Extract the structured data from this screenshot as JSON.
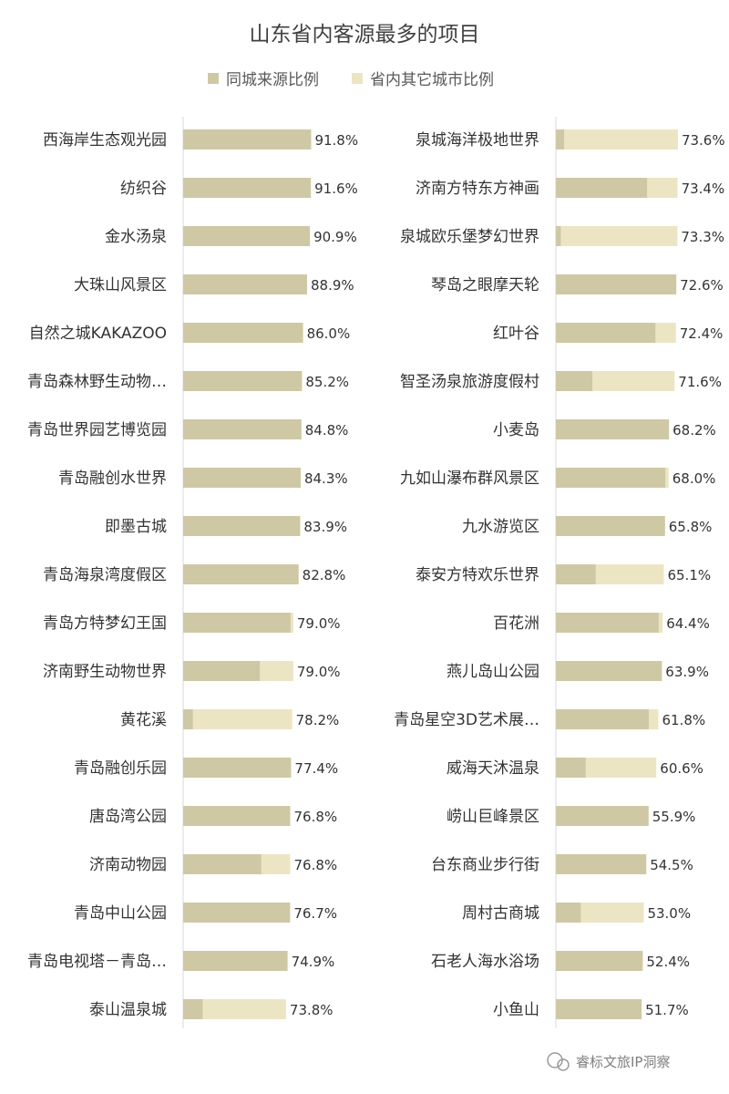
{
  "chart_data": {
    "type": "bar",
    "title": "山东省内客源最多的项目",
    "legend": [
      "同城来源比例",
      "省内其它城市比例"
    ],
    "legend_position": "top",
    "colors": {
      "same_city": "#cfc8a5",
      "other_city": "#ece5c4"
    },
    "value_axis": [
      0,
      100
    ],
    "grid": false,
    "panels": [
      {
        "panel": "left",
        "items": [
          {
            "name": "西海岸生态观光园",
            "total": 91.8,
            "total_label": "91.8%",
            "same_city": 91.8
          },
          {
            "name": "纺织谷",
            "total": 91.6,
            "total_label": "91.6%",
            "same_city": 91.6
          },
          {
            "name": "金水汤泉",
            "total": 90.9,
            "total_label": "90.9%",
            "same_city": 90.9
          },
          {
            "name": "大珠山风景区",
            "total": 88.9,
            "total_label": "88.9%",
            "same_city": 88.9
          },
          {
            "name": "自然之城KAKAZOO",
            "total": 86.0,
            "total_label": "86.0%",
            "same_city": 86.0
          },
          {
            "name": "青岛森林野生动物…",
            "total": 85.2,
            "total_label": "85.2%",
            "same_city": 85.2
          },
          {
            "name": "青岛世界园艺博览园",
            "total": 84.8,
            "total_label": "84.8%",
            "same_city": 84.8
          },
          {
            "name": "青岛融创水世界",
            "total": 84.3,
            "total_label": "84.3%",
            "same_city": 84.3
          },
          {
            "name": "即墨古城",
            "total": 83.9,
            "total_label": "83.9%",
            "same_city": 83.9
          },
          {
            "name": "青岛海泉湾度假区",
            "total": 82.8,
            "total_label": "82.8%",
            "same_city": 82.8
          },
          {
            "name": "青岛方特梦幻王国",
            "total": 79.0,
            "total_label": "79.0%",
            "same_city": 77
          },
          {
            "name": "济南野生动物世界",
            "total": 79.0,
            "total_label": "79.0%",
            "same_city": 55
          },
          {
            "name": "黄花溪",
            "total": 78.2,
            "total_label": "78.2%",
            "same_city": 7
          },
          {
            "name": "青岛融创乐园",
            "total": 77.4,
            "total_label": "77.4%",
            "same_city": 77.4
          },
          {
            "name": "唐岛湾公园",
            "total": 76.8,
            "total_label": "76.8%",
            "same_city": 76.8
          },
          {
            "name": "济南动物园",
            "total": 76.8,
            "total_label": "76.8%",
            "same_city": 56
          },
          {
            "name": "青岛中山公园",
            "total": 76.7,
            "total_label": "76.7%",
            "same_city": 76.7
          },
          {
            "name": "青岛电视塔－青岛…",
            "total": 74.9,
            "total_label": "74.9%",
            "same_city": 74.9
          },
          {
            "name": "泰山温泉城",
            "total": 73.8,
            "total_label": "73.8%",
            "same_city": 14
          }
        ]
      },
      {
        "panel": "right",
        "items": [
          {
            "name": "泉城海洋极地世界",
            "total": 73.6,
            "total_label": "73.6%",
            "same_city": 5
          },
          {
            "name": "济南方特东方神画",
            "total": 73.4,
            "total_label": "73.4%",
            "same_city": 55
          },
          {
            "name": "泉城欧乐堡梦幻世界",
            "total": 73.3,
            "total_label": "73.3%",
            "same_city": 3
          },
          {
            "name": "琴岛之眼摩天轮",
            "total": 72.6,
            "total_label": "72.6%",
            "same_city": 72.6
          },
          {
            "name": "红叶谷",
            "total": 72.4,
            "total_label": "72.4%",
            "same_city": 60
          },
          {
            "name": "智圣汤泉旅游度假村",
            "total": 71.6,
            "total_label": "71.6%",
            "same_city": 22
          },
          {
            "name": "小麦岛",
            "total": 68.2,
            "total_label": "68.2%",
            "same_city": 68.2
          },
          {
            "name": "九如山瀑布群风景区",
            "total": 68.0,
            "total_label": "68.0%",
            "same_city": 66
          },
          {
            "name": "九水游览区",
            "total": 65.8,
            "total_label": "65.8%",
            "same_city": 65.8
          },
          {
            "name": "泰安方特欢乐世界",
            "total": 65.1,
            "total_label": "65.1%",
            "same_city": 24
          },
          {
            "name": "百花洲",
            "total": 64.4,
            "total_label": "64.4%",
            "same_city": 62
          },
          {
            "name": "燕儿岛山公园",
            "total": 63.9,
            "total_label": "63.9%",
            "same_city": 63.9
          },
          {
            "name": "青岛星空3D艺术展…",
            "total": 61.8,
            "total_label": "61.8%",
            "same_city": 56
          },
          {
            "name": "威海天沐温泉",
            "total": 60.6,
            "total_label": "60.6%",
            "same_city": 18
          },
          {
            "name": "崂山巨峰景区",
            "total": 55.9,
            "total_label": "55.9%",
            "same_city": 55.9
          },
          {
            "name": "台东商业步行街",
            "total": 54.5,
            "total_label": "54.5%",
            "same_city": 54.5
          },
          {
            "name": "周村古商城",
            "total": 53.0,
            "total_label": "53.0%",
            "same_city": 15
          },
          {
            "name": "石老人海水浴场",
            "total": 52.4,
            "total_label": "52.4%",
            "same_city": 52.4
          },
          {
            "name": "小鱼山",
            "total": 51.7,
            "total_label": "51.7%",
            "same_city": 51.7
          }
        ]
      }
    ]
  },
  "watermark": "睿标文旅IP洞察"
}
